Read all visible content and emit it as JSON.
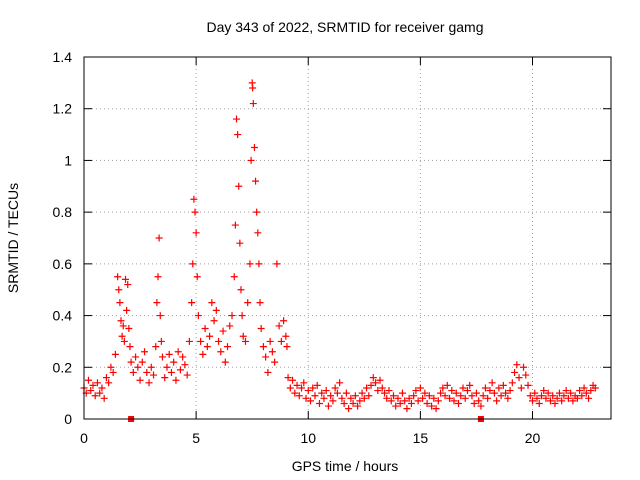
{
  "chart_data": {
    "type": "scatter",
    "title": "Day 343 of 2022, SRMTID for receiver gamg",
    "xlabel": "GPS time / hours",
    "ylabel": "SRMTID / TECUs",
    "xlim": [
      0,
      23.5
    ],
    "ylim": [
      0,
      1.4
    ],
    "xticks": [
      0,
      5,
      10,
      15,
      20
    ],
    "xtick_labels": [
      "0",
      "5",
      "10",
      "15",
      "20"
    ],
    "yticks": [
      0,
      0.2,
      0.4,
      0.6,
      0.8,
      1.0,
      1.2,
      1.4
    ],
    "ytick_labels": [
      "0",
      "0.2",
      "0.4",
      "0.6",
      "0.8",
      "1",
      "1.2",
      "1.4"
    ],
    "grid": true,
    "marker": "plus",
    "series": [
      {
        "name": "SRMTID",
        "color": "#ff0000",
        "points": [
          [
            0.0,
            0.12
          ],
          [
            0.1,
            0.1
          ],
          [
            0.2,
            0.15
          ],
          [
            0.3,
            0.11
          ],
          [
            0.4,
            0.13
          ],
          [
            0.5,
            0.09
          ],
          [
            0.6,
            0.14
          ],
          [
            0.7,
            0.1
          ],
          [
            0.8,
            0.12
          ],
          [
            0.9,
            0.08
          ],
          [
            1.0,
            0.16
          ],
          [
            1.1,
            0.14
          ],
          [
            1.2,
            0.2
          ],
          [
            1.3,
            0.18
          ],
          [
            1.4,
            0.25
          ],
          [
            1.5,
            0.55
          ],
          [
            1.55,
            0.5
          ],
          [
            1.6,
            0.45
          ],
          [
            1.65,
            0.38
          ],
          [
            1.7,
            0.32
          ],
          [
            1.75,
            0.36
          ],
          [
            1.8,
            0.3
          ],
          [
            1.85,
            0.54
          ],
          [
            1.9,
            0.42
          ],
          [
            1.95,
            0.52
          ],
          [
            2.0,
            0.35
          ],
          [
            2.05,
            0.28
          ],
          [
            2.1,
            0.22
          ],
          [
            2.2,
            0.18
          ],
          [
            2.3,
            0.24
          ],
          [
            2.4,
            0.2
          ],
          [
            2.5,
            0.15
          ],
          [
            2.6,
            0.22
          ],
          [
            2.7,
            0.26
          ],
          [
            2.8,
            0.18
          ],
          [
            2.9,
            0.14
          ],
          [
            3.0,
            0.2
          ],
          [
            3.1,
            0.17
          ],
          [
            3.2,
            0.28
          ],
          [
            3.25,
            0.45
          ],
          [
            3.3,
            0.55
          ],
          [
            3.35,
            0.7
          ],
          [
            3.4,
            0.4
          ],
          [
            3.45,
            0.3
          ],
          [
            3.5,
            0.24
          ],
          [
            3.6,
            0.16
          ],
          [
            3.7,
            0.2
          ],
          [
            3.8,
            0.25
          ],
          [
            3.9,
            0.18
          ],
          [
            4.0,
            0.22
          ],
          [
            4.1,
            0.15
          ],
          [
            4.2,
            0.26
          ],
          [
            4.3,
            0.19
          ],
          [
            4.4,
            0.24
          ],
          [
            4.5,
            0.21
          ],
          [
            4.6,
            0.17
          ],
          [
            4.7,
            0.3
          ],
          [
            4.8,
            0.45
          ],
          [
            4.85,
            0.6
          ],
          [
            4.9,
            0.85
          ],
          [
            4.95,
            0.8
          ],
          [
            5.0,
            0.72
          ],
          [
            5.05,
            0.55
          ],
          [
            5.1,
            0.4
          ],
          [
            5.2,
            0.3
          ],
          [
            5.3,
            0.25
          ],
          [
            5.4,
            0.35
          ],
          [
            5.5,
            0.28
          ],
          [
            5.6,
            0.32
          ],
          [
            5.7,
            0.45
          ],
          [
            5.8,
            0.38
          ],
          [
            5.9,
            0.42
          ],
          [
            6.0,
            0.3
          ],
          [
            6.1,
            0.26
          ],
          [
            6.2,
            0.34
          ],
          [
            6.3,
            0.22
          ],
          [
            6.4,
            0.28
          ],
          [
            6.5,
            0.36
          ],
          [
            6.6,
            0.4
          ],
          [
            6.7,
            0.55
          ],
          [
            6.75,
            0.75
          ],
          [
            6.8,
            1.16
          ],
          [
            6.85,
            1.1
          ],
          [
            6.9,
            0.9
          ],
          [
            6.95,
            0.68
          ],
          [
            7.0,
            0.5
          ],
          [
            7.05,
            0.4
          ],
          [
            7.1,
            0.32
          ],
          [
            7.2,
            0.3
          ],
          [
            7.3,
            0.45
          ],
          [
            7.4,
            0.6
          ],
          [
            7.45,
            1.0
          ],
          [
            7.5,
            1.3
          ],
          [
            7.52,
            1.28
          ],
          [
            7.55,
            1.22
          ],
          [
            7.6,
            1.05
          ],
          [
            7.65,
            0.92
          ],
          [
            7.7,
            0.8
          ],
          [
            7.75,
            0.72
          ],
          [
            7.8,
            0.6
          ],
          [
            7.85,
            0.45
          ],
          [
            7.9,
            0.35
          ],
          [
            8.0,
            0.28
          ],
          [
            8.1,
            0.24
          ],
          [
            8.2,
            0.18
          ],
          [
            8.3,
            0.3
          ],
          [
            8.4,
            0.26
          ],
          [
            8.5,
            0.22
          ],
          [
            8.6,
            0.6
          ],
          [
            8.7,
            0.36
          ],
          [
            8.8,
            0.3
          ],
          [
            8.9,
            0.38
          ],
          [
            9.0,
            0.32
          ],
          [
            9.05,
            0.28
          ],
          [
            9.1,
            0.16
          ],
          [
            9.2,
            0.12
          ],
          [
            9.3,
            0.15
          ],
          [
            9.4,
            0.1
          ],
          [
            9.5,
            0.13
          ],
          [
            9.6,
            0.09
          ],
          [
            9.7,
            0.12
          ],
          [
            9.8,
            0.14
          ],
          [
            9.9,
            0.08
          ],
          [
            10.0,
            0.11
          ],
          [
            10.1,
            0.07
          ],
          [
            10.2,
            0.12
          ],
          [
            10.3,
            0.09
          ],
          [
            10.4,
            0.13
          ],
          [
            10.5,
            0.06
          ],
          [
            10.6,
            0.1
          ],
          [
            10.7,
            0.08
          ],
          [
            10.8,
            0.11
          ],
          [
            10.9,
            0.05
          ],
          [
            11.0,
            0.09
          ],
          [
            11.1,
            0.07
          ],
          [
            11.2,
            0.12
          ],
          [
            11.3,
            0.1
          ],
          [
            11.4,
            0.14
          ],
          [
            11.5,
            0.08
          ],
          [
            11.6,
            0.06
          ],
          [
            11.7,
            0.1
          ],
          [
            11.8,
            0.04
          ],
          [
            11.9,
            0.08
          ],
          [
            12.0,
            0.06
          ],
          [
            12.1,
            0.09
          ],
          [
            12.2,
            0.05
          ],
          [
            12.3,
            0.07
          ],
          [
            12.4,
            0.1
          ],
          [
            12.5,
            0.08
          ],
          [
            12.6,
            0.12
          ],
          [
            12.7,
            0.09
          ],
          [
            12.8,
            0.13
          ],
          [
            12.9,
            0.16
          ],
          [
            13.0,
            0.14
          ],
          [
            13.1,
            0.11
          ],
          [
            13.2,
            0.15
          ],
          [
            13.3,
            0.12
          ],
          [
            13.4,
            0.1
          ],
          [
            13.5,
            0.08
          ],
          [
            13.6,
            0.11
          ],
          [
            13.7,
            0.07
          ],
          [
            13.8,
            0.09
          ],
          [
            13.9,
            0.05
          ],
          [
            14.0,
            0.08
          ],
          [
            14.1,
            0.06
          ],
          [
            14.2,
            0.1
          ],
          [
            14.3,
            0.07
          ],
          [
            14.4,
            0.04
          ],
          [
            14.5,
            0.08
          ],
          [
            14.6,
            0.06
          ],
          [
            14.7,
            0.09
          ],
          [
            14.8,
            0.11
          ],
          [
            14.9,
            0.07
          ],
          [
            15.0,
            0.12
          ],
          [
            15.1,
            0.08
          ],
          [
            15.2,
            0.1
          ],
          [
            15.3,
            0.06
          ],
          [
            15.4,
            0.09
          ],
          [
            15.5,
            0.05
          ],
          [
            15.6,
            0.08
          ],
          [
            15.7,
            0.04
          ],
          [
            15.8,
            0.07
          ],
          [
            15.9,
            0.1
          ],
          [
            16.0,
            0.12
          ],
          [
            16.1,
            0.09
          ],
          [
            16.2,
            0.13
          ],
          [
            16.3,
            0.08
          ],
          [
            16.4,
            0.11
          ],
          [
            16.5,
            0.07
          ],
          [
            16.6,
            0.1
          ],
          [
            16.7,
            0.06
          ],
          [
            16.8,
            0.09
          ],
          [
            16.9,
            0.12
          ],
          [
            17.0,
            0.08
          ],
          [
            17.1,
            0.11
          ],
          [
            17.2,
            0.13
          ],
          [
            17.3,
            0.09
          ],
          [
            17.4,
            0.06
          ],
          [
            17.5,
            0.1
          ],
          [
            17.6,
            0.07
          ],
          [
            17.7,
            0.05
          ],
          [
            17.8,
            0.09
          ],
          [
            17.9,
            0.12
          ],
          [
            18.0,
            0.08
          ],
          [
            18.1,
            0.11
          ],
          [
            18.2,
            0.14
          ],
          [
            18.3,
            0.1
          ],
          [
            18.4,
            0.07
          ],
          [
            18.5,
            0.12
          ],
          [
            18.6,
            0.09
          ],
          [
            18.7,
            0.13
          ],
          [
            18.8,
            0.1
          ],
          [
            18.9,
            0.08
          ],
          [
            19.0,
            0.11
          ],
          [
            19.1,
            0.14
          ],
          [
            19.2,
            0.18
          ],
          [
            19.3,
            0.21
          ],
          [
            19.4,
            0.16
          ],
          [
            19.5,
            0.12
          ],
          [
            19.6,
            0.2
          ],
          [
            19.7,
            0.17
          ],
          [
            19.8,
            0.13
          ],
          [
            19.9,
            0.09
          ],
          [
            20.0,
            0.07
          ],
          [
            20.1,
            0.1
          ],
          [
            20.2,
            0.08
          ],
          [
            20.3,
            0.06
          ],
          [
            20.4,
            0.09
          ],
          [
            20.5,
            0.11
          ],
          [
            20.6,
            0.08
          ],
          [
            20.7,
            0.1
          ],
          [
            20.8,
            0.07
          ],
          [
            20.9,
            0.09
          ],
          [
            21.0,
            0.06
          ],
          [
            21.1,
            0.08
          ],
          [
            21.2,
            0.1
          ],
          [
            21.3,
            0.07
          ],
          [
            21.4,
            0.09
          ],
          [
            21.5,
            0.11
          ],
          [
            21.6,
            0.08
          ],
          [
            21.7,
            0.1
          ],
          [
            21.8,
            0.07
          ],
          [
            21.9,
            0.09
          ],
          [
            22.0,
            0.08
          ],
          [
            22.1,
            0.11
          ],
          [
            22.2,
            0.09
          ],
          [
            22.3,
            0.12
          ],
          [
            22.4,
            0.1
          ],
          [
            22.5,
            0.08
          ],
          [
            22.6,
            0.11
          ],
          [
            22.7,
            0.13
          ],
          [
            22.8,
            0.12
          ]
        ]
      },
      {
        "name": "zero-markers",
        "color": "#ff0000",
        "marker": "square",
        "points": [
          [
            2.1,
            0.0
          ],
          [
            17.7,
            0.0
          ]
        ]
      }
    ]
  }
}
